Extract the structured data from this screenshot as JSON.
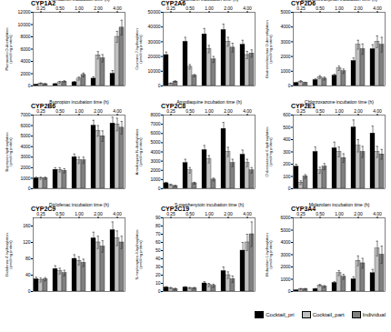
{
  "chart_data": [
    {
      "type": "bar",
      "title": "CYP1A2",
      "xlabel": "Phenacetin incubation time (h)",
      "ylabel": "Phenacetin O-deethylation\n(pmol/mg protein)",
      "categories": [
        "0.25",
        "0.50",
        "1.00",
        "2.00",
        "4.00"
      ],
      "series": [
        {
          "name": "Cocktail_pri",
          "color": "#000000",
          "values": [
            200,
            300,
            600,
            1200,
            2000
          ],
          "errors": [
            50,
            80,
            120,
            300,
            500
          ]
        },
        {
          "name": "Cocktail_part",
          "color": "#c0c0c0",
          "values": [
            400,
            600,
            1200,
            5000,
            8000
          ],
          "errors": [
            100,
            150,
            250,
            600,
            900
          ]
        },
        {
          "name": "Individual",
          "color": "#808080",
          "values": [
            300,
            700,
            1800,
            4500,
            9500
          ],
          "errors": [
            80,
            150,
            300,
            600,
            1200
          ]
        }
      ],
      "ylim": [
        0,
        12000
      ],
      "yticks": [
        0,
        2000,
        4000,
        6000,
        8000,
        10000,
        12000
      ],
      "grid": false
    },
    {
      "type": "bar",
      "title": "CYP2A6",
      "xlabel": "Coumarin incubation time (h)",
      "ylabel": "Coumarin 7-hydroxylation\n(pmol/mg protein)",
      "categories": [
        "0.25",
        "0.50",
        "1.00",
        "2.00",
        "4.00"
      ],
      "series": [
        {
          "name": "Cocktail_pri",
          "color": "#000000",
          "values": [
            21000,
            30000,
            35000,
            38000,
            28000
          ],
          "errors": [
            2000,
            3000,
            4000,
            4000,
            3000
          ]
        },
        {
          "name": "Cocktail_part",
          "color": "#c0c0c0",
          "values": [
            1500,
            13000,
            25000,
            30000,
            21000
          ],
          "errors": [
            500,
            1500,
            2500,
            3000,
            2500
          ]
        },
        {
          "name": "Individual",
          "color": "#808080",
          "values": [
            3000,
            7000,
            18000,
            26000,
            22000
          ],
          "errors": [
            500,
            800,
            2000,
            3000,
            2500
          ]
        }
      ],
      "ylim": [
        0,
        50000
      ],
      "yticks": [
        0,
        10000,
        20000,
        30000,
        40000,
        50000
      ],
      "grid": false
    },
    {
      "type": "bar",
      "title": "CYP2D6",
      "xlabel": "Dextromethorphan incubation time (h)",
      "ylabel": "Dextromethorphan O-demethylation\n(pmol/mg protein)",
      "categories": [
        "0.25",
        "0.50",
        "1.00",
        "2.00",
        "4.00"
      ],
      "series": [
        {
          "name": "Cocktail_pri",
          "color": "#000000",
          "values": [
            200,
            400,
            700,
            1700,
            2500
          ],
          "errors": [
            50,
            80,
            100,
            200,
            300
          ]
        },
        {
          "name": "Cocktail_part",
          "color": "#c0c0c0",
          "values": [
            300,
            600,
            1200,
            2800,
            3000
          ],
          "errors": [
            60,
            100,
            150,
            300,
            400
          ]
        },
        {
          "name": "Individual",
          "color": "#808080",
          "values": [
            200,
            500,
            1000,
            2500,
            2800
          ],
          "errors": [
            50,
            100,
            150,
            350,
            500
          ]
        }
      ],
      "ylim": [
        0,
        5000
      ],
      "yticks": [
        0,
        1000,
        2000,
        3000,
        4000,
        5000
      ],
      "grid": false
    },
    {
      "type": "bar",
      "title": "CYP2B6",
      "xlabel": "Bupropion incubation time (h)",
      "ylabel": "Bupropion hydroxylation\n(pmol/mg protein)",
      "categories": [
        "0.25",
        "0.50",
        "1.00",
        "2.00",
        "4.00"
      ],
      "series": [
        {
          "name": "Cocktail_pri",
          "color": "#000000",
          "values": [
            1000,
            1800,
            3000,
            6000,
            6200
          ],
          "errors": [
            100,
            200,
            300,
            500,
            600
          ]
        },
        {
          "name": "Cocktail_part",
          "color": "#c0c0c0",
          "values": [
            1000,
            1800,
            2700,
            5500,
            6100
          ],
          "errors": [
            100,
            200,
            300,
            500,
            600
          ]
        },
        {
          "name": "Individual",
          "color": "#808080",
          "values": [
            1000,
            1700,
            2700,
            5000,
            5800
          ],
          "errors": [
            100,
            200,
            300,
            500,
            600
          ]
        }
      ],
      "ylim": [
        0,
        7000
      ],
      "yticks": [
        0,
        1000,
        2000,
        3000,
        4000,
        5000,
        6000,
        7000
      ],
      "grid": false
    },
    {
      "type": "bar",
      "title": "CYP2C8",
      "xlabel": "Amodiaquine incubation time (h)",
      "ylabel": "Amodiaquine N-deethylation\n(pmol/mg protein)",
      "categories": [
        "0.25",
        "0.50",
        "1.00",
        "2.00",
        "4.00"
      ],
      "series": [
        {
          "name": "Cocktail_pri",
          "color": "#000000",
          "values": [
            600,
            2800,
            4200,
            6500,
            3700
          ],
          "errors": [
            100,
            400,
            500,
            700,
            500
          ]
        },
        {
          "name": "Cocktail_part",
          "color": "#c0c0c0",
          "values": [
            400,
            2000,
            3200,
            4000,
            2800
          ],
          "errors": [
            80,
            300,
            400,
            500,
            400
          ]
        },
        {
          "name": "Individual",
          "color": "#808080",
          "values": [
            300,
            600,
            1000,
            2800,
            2000
          ],
          "errors": [
            60,
            100,
            150,
            400,
            300
          ]
        }
      ],
      "ylim": [
        0,
        8000
      ],
      "yticks": [
        0,
        1000,
        2000,
        3000,
        4000,
        5000,
        6000,
        7000,
        8000
      ],
      "grid": false
    },
    {
      "type": "bar",
      "title": "CYP2E1",
      "xlabel": "Chlorzoxazone incubation time (h)",
      "ylabel": "Chlorzoxazone 6-hydroxylation\n(pmol/mg protein)",
      "categories": [
        "0.25",
        "0.50",
        "1.00",
        "2.00",
        "4.00"
      ],
      "series": [
        {
          "name": "Cocktail_pri",
          "color": "#000000",
          "values": [
            180,
            300,
            330,
            500,
            450
          ],
          "errors": [
            20,
            40,
            50,
            60,
            60
          ]
        },
        {
          "name": "Cocktail_part",
          "color": "#c0c0c0",
          "values": [
            50,
            150,
            300,
            350,
            300
          ],
          "errors": [
            15,
            25,
            40,
            50,
            45
          ]
        },
        {
          "name": "Individual",
          "color": "#808080",
          "values": [
            100,
            180,
            250,
            300,
            280
          ],
          "errors": [
            15,
            25,
            35,
            45,
            40
          ]
        }
      ],
      "ylim": [
        0,
        600
      ],
      "yticks": [
        0,
        100,
        200,
        300,
        400,
        500,
        600
      ],
      "grid": false
    },
    {
      "type": "bar",
      "title": "CYP2C9",
      "xlabel": "Diclofenac incubation time (h)",
      "ylabel": "Diclofenac 4'-hydroxylation\n(pmol/mg protein)",
      "categories": [
        "0.25",
        "0.50",
        "1.00",
        "2.00",
        "4.00"
      ],
      "series": [
        {
          "name": "Cocktail_pri",
          "color": "#000000",
          "values": [
            30,
            55,
            80,
            130,
            150
          ],
          "errors": [
            5,
            8,
            10,
            15,
            20
          ]
        },
        {
          "name": "Cocktail_part",
          "color": "#c0c0c0",
          "values": [
            28,
            50,
            75,
            120,
            130
          ],
          "errors": [
            5,
            7,
            10,
            15,
            18
          ]
        },
        {
          "name": "Individual",
          "color": "#808080",
          "values": [
            30,
            45,
            70,
            110,
            120
          ],
          "errors": [
            4,
            7,
            9,
            14,
            15
          ]
        }
      ],
      "ylim": [
        0,
        180
      ],
      "yticks": [
        0,
        40,
        80,
        120,
        160
      ],
      "grid": false
    },
    {
      "type": "bar",
      "title": "CYP2C19",
      "xlabel": "S-mephenytoin incubation time (h)",
      "ylabel": "S-mephenytoin 4-hydroxylation\n(pmol/mg protein)",
      "categories": [
        "0.25",
        "0.50",
        "1.00",
        "2.00",
        "4.00"
      ],
      "series": [
        {
          "name": "Cocktail_pri",
          "color": "#000000",
          "values": [
            5,
            5,
            10,
            25,
            50
          ],
          "errors": [
            1,
            1,
            2,
            5,
            10
          ]
        },
        {
          "name": "Cocktail_part",
          "color": "#c0c0c0",
          "values": [
            4,
            4,
            8,
            20,
            60
          ],
          "errors": [
            1,
            1,
            2,
            4,
            10
          ]
        },
        {
          "name": "Individual",
          "color": "#808080",
          "values": [
            3,
            4,
            7,
            15,
            70
          ],
          "errors": [
            1,
            1,
            2,
            4,
            15
          ]
        }
      ],
      "ylim": [
        0,
        90
      ],
      "yticks": [
        0,
        10,
        20,
        30,
        40,
        50,
        60,
        70,
        80,
        90
      ],
      "grid": false
    },
    {
      "type": "bar",
      "title": "CYP3A4",
      "xlabel": "Midazolam incubation time (h)",
      "ylabel": "Midazolam 1-hydroxylation\n(pmol/mg protein)",
      "categories": [
        "0.25",
        "0.50",
        "1.00",
        "2.00",
        "4.00"
      ],
      "series": [
        {
          "name": "Cocktail_pri",
          "color": "#000000",
          "values": [
            100,
            200,
            700,
            1000,
            1500
          ],
          "errors": [
            30,
            50,
            100,
            200,
            300
          ]
        },
        {
          "name": "Cocktail_part",
          "color": "#c0c0c0",
          "values": [
            200,
            500,
            1500,
            2500,
            3500
          ],
          "errors": [
            50,
            80,
            200,
            400,
            600
          ]
        },
        {
          "name": "Individual",
          "color": "#808080",
          "values": [
            200,
            400,
            1200,
            2300,
            3000
          ],
          "errors": [
            50,
            80,
            200,
            400,
            700
          ]
        }
      ],
      "ylim": [
        0,
        6000
      ],
      "yticks": [
        0,
        1000,
        2000,
        3000,
        4000,
        5000,
        6000
      ],
      "grid": false,
      "legend": "lower right"
    }
  ]
}
